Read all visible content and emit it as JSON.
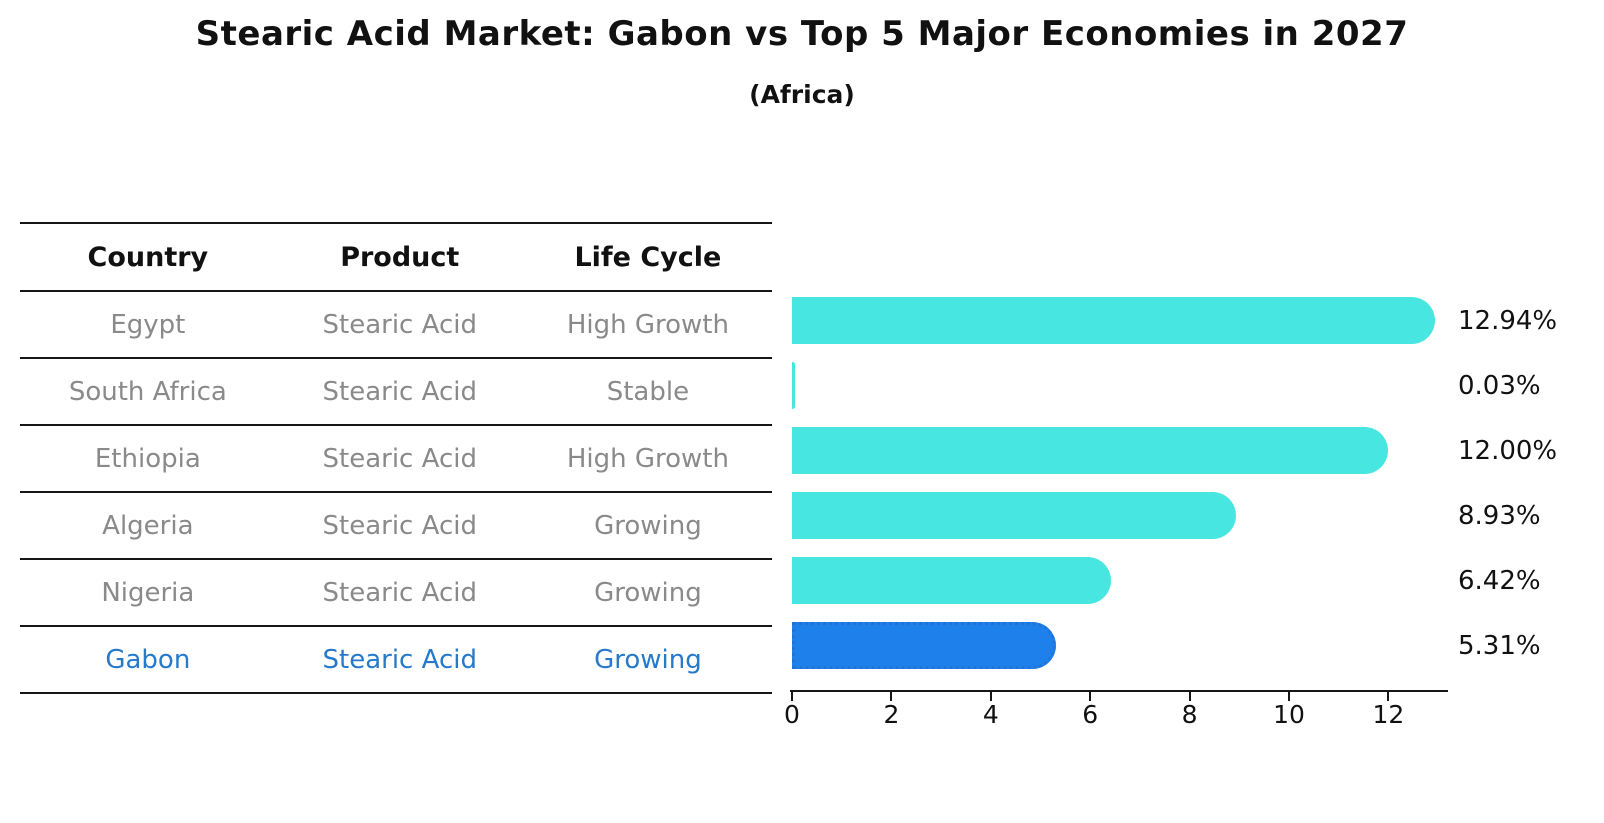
{
  "title": "Stearic Acid Market: Gabon vs Top 5 Major Economies in 2027",
  "subtitle": "(Africa)",
  "table": {
    "headers": [
      "Country",
      "Product",
      "Life Cycle"
    ],
    "rows": [
      {
        "country": "Egypt",
        "product": "Stearic Acid",
        "life_cycle": "High Growth",
        "highlight": false
      },
      {
        "country": "South Africa",
        "product": "Stearic Acid",
        "life_cycle": "Stable",
        "highlight": false
      },
      {
        "country": "Ethiopia",
        "product": "Stearic Acid",
        "life_cycle": "High Growth",
        "highlight": false
      },
      {
        "country": "Algeria",
        "product": "Stearic Acid",
        "life_cycle": "Growing",
        "highlight": false
      },
      {
        "country": "Nigeria",
        "product": "Stearic Acid",
        "life_cycle": "Growing",
        "highlight": false
      },
      {
        "country": "Gabon",
        "product": "Stearic Acid",
        "life_cycle": "Growing",
        "highlight": true
      }
    ]
  },
  "chart_data": {
    "type": "bar",
    "orientation": "horizontal",
    "title": "Stearic Acid Market: Gabon vs Top 5 Major Economies in 2027",
    "subtitle": "(Africa)",
    "categories": [
      "Egypt",
      "South Africa",
      "Ethiopia",
      "Algeria",
      "Nigeria",
      "Gabon"
    ],
    "values": [
      12.94,
      0.03,
      12.0,
      8.93,
      6.42,
      5.31
    ],
    "value_labels": [
      "12.94%",
      "0.03%",
      "12.00%",
      "8.93%",
      "6.42%",
      "5.31%"
    ],
    "xlabel": "",
    "ylabel": "",
    "xlim": [
      0,
      13.2
    ],
    "xticks": [
      0,
      2,
      4,
      6,
      8,
      10,
      12
    ],
    "grid": false,
    "legend": "none",
    "bar_color": "#47E6E0",
    "highlight_color": "#1E80EA",
    "highlight_border_color": "#2273D8",
    "highlight_index": 5
  },
  "colors": {
    "text_dark": "#111111",
    "text_muted": "#8a8a8a",
    "highlight_text": "#2679CB",
    "line": "#161616"
  }
}
